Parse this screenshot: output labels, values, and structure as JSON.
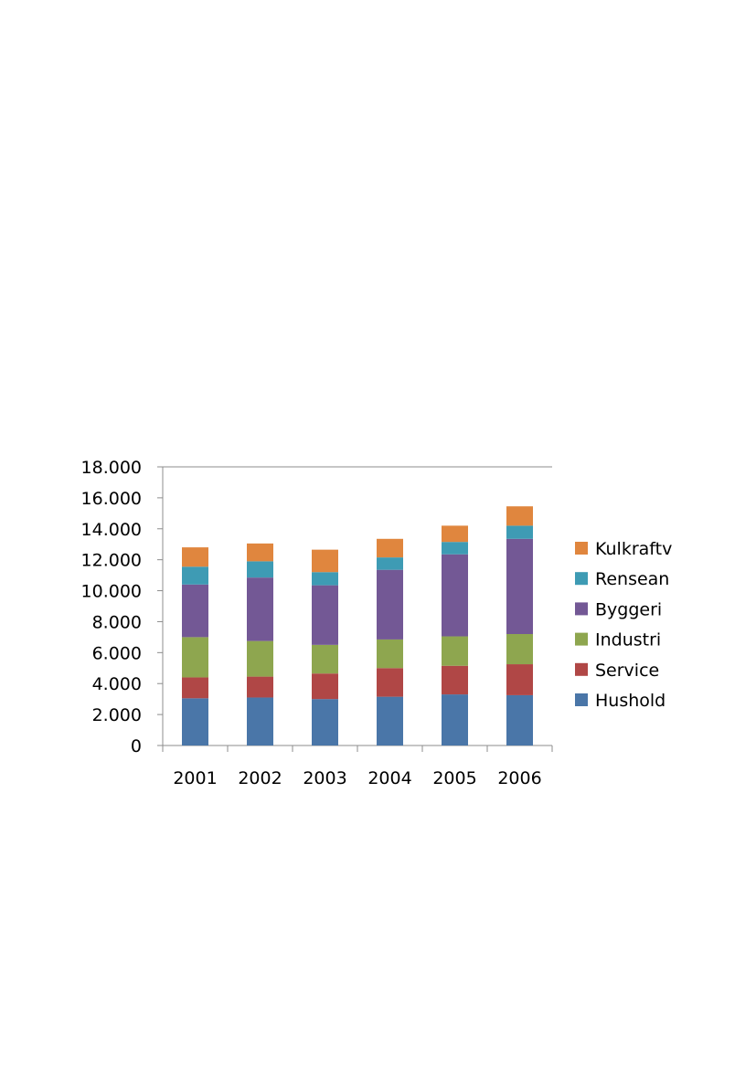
{
  "chart_data": {
    "type": "bar",
    "stacked": true,
    "title": "",
    "xlabel": "",
    "ylabel": "",
    "categories": [
      "2001",
      "2002",
      "2003",
      "2004",
      "2005",
      "2006"
    ],
    "ylim": [
      0,
      18000
    ],
    "y_ticks": [
      0,
      2000,
      4000,
      6000,
      8000,
      10000,
      12000,
      14000,
      16000,
      18000
    ],
    "y_tick_labels": [
      "0",
      "2.000",
      "4.000",
      "6.000",
      "8.000",
      "10.000",
      "12.000",
      "14.000",
      "16.000",
      "18.000"
    ],
    "grid": "top line only",
    "legend_position": "right",
    "series": [
      {
        "name": "Hushold",
        "color": "#4A76A8",
        "values": [
          3050,
          3100,
          3000,
          3150,
          3300,
          3250
        ]
      },
      {
        "name": "Service",
        "color": "#B04746",
        "values": [
          1350,
          1350,
          1650,
          1850,
          1850,
          2000
        ]
      },
      {
        "name": "Industri",
        "color": "#8EA64F",
        "values": [
          2600,
          2300,
          1850,
          1850,
          1900,
          1950
        ]
      },
      {
        "name": "Byggeri",
        "color": "#735895",
        "values": [
          3400,
          4100,
          3850,
          4500,
          5300,
          6150
        ]
      },
      {
        "name": "Rensean",
        "color": "#3E9BB4",
        "values": [
          1150,
          1050,
          850,
          800,
          800,
          850
        ]
      },
      {
        "name": "Kulkraftv",
        "color": "#E0863E",
        "values": [
          1250,
          1150,
          1450,
          1200,
          1050,
          1250
        ]
      }
    ]
  }
}
